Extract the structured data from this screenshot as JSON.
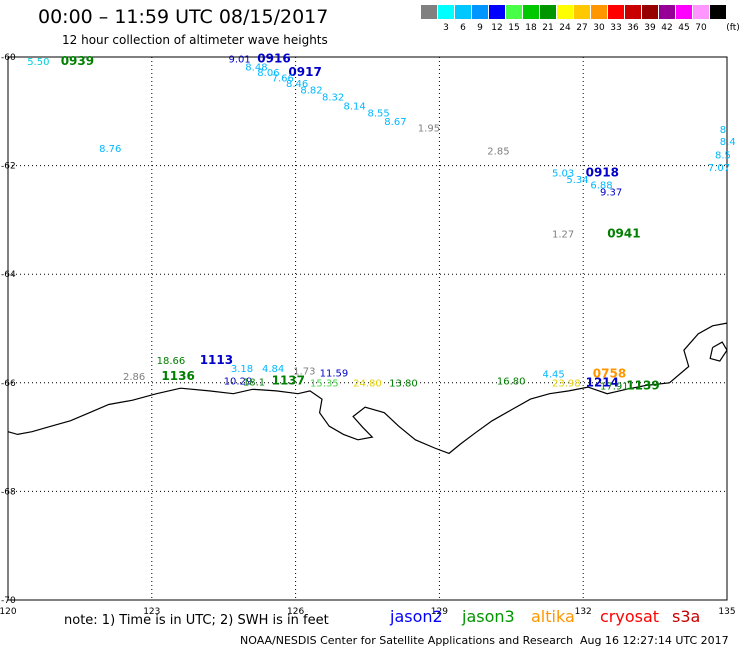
{
  "header": {
    "title": "00:00 – 11:59 UTC 08/15/2017",
    "subtitle": "12 hour collection of altimeter wave heights"
  },
  "color_scale": {
    "unit_label": "(ft)",
    "swatches": [
      {
        "color": "#808080",
        "label": ""
      },
      {
        "color": "#00ffff",
        "label": "3"
      },
      {
        "color": "#00c8ff",
        "label": "6"
      },
      {
        "color": "#0096ff",
        "label": "9"
      },
      {
        "color": "#0000ff",
        "label": "12"
      },
      {
        "color": "#46ff46",
        "label": "15"
      },
      {
        "color": "#00c800",
        "label": "18"
      },
      {
        "color": "#009600",
        "label": "21"
      },
      {
        "color": "#ffff00",
        "label": "24"
      },
      {
        "color": "#ffc800",
        "label": "27"
      },
      {
        "color": "#ff9600",
        "label": "30"
      },
      {
        "color": "#ff0000",
        "label": "33"
      },
      {
        "color": "#c80000",
        "label": "36"
      },
      {
        "color": "#960000",
        "label": "39"
      },
      {
        "color": "#960096",
        "label": "42"
      },
      {
        "color": "#ff00ff",
        "label": "45"
      },
      {
        "color": "#ff96ff",
        "label": "70"
      },
      {
        "color": "#000000",
        "label": ""
      }
    ]
  },
  "map": {
    "lon_range": [
      120,
      135
    ],
    "lat_range": [
      -70,
      -60
    ],
    "lon_ticks": [
      {
        "value": 120,
        "label": "120"
      },
      {
        "value": 123,
        "label": "123"
      },
      {
        "value": 126,
        "label": "126"
      },
      {
        "value": 129,
        "label": "129"
      },
      {
        "value": 132,
        "label": "132"
      },
      {
        "value": 135,
        "label": "135"
      }
    ],
    "lat_ticks": [
      {
        "value": -60,
        "label": "-60"
      },
      {
        "value": -62,
        "label": "-62"
      },
      {
        "value": -64,
        "label": "-64"
      },
      {
        "value": -66,
        "label": "-66"
      },
      {
        "value": -68,
        "label": "-68"
      },
      {
        "value": -70,
        "label": "-70"
      }
    ]
  },
  "observations": [
    {
      "lon": 120.4,
      "lat": -60.15,
      "text": "5.50",
      "color": "#00d0e0",
      "bold": false
    },
    {
      "lon": 121.1,
      "lat": -60.15,
      "text": "0939",
      "color": "#008000",
      "bold": true
    },
    {
      "lon": 121.9,
      "lat": -61.75,
      "text": "8.76",
      "color": "#00b8ff",
      "bold": false
    },
    {
      "lon": 124.6,
      "lat": -60.1,
      "text": "9.01",
      "color": "#0000c8",
      "bold": false
    },
    {
      "lon": 125.2,
      "lat": -60.1,
      "text": "0916",
      "color": "#0000c8",
      "bold": true
    },
    {
      "lon": 124.95,
      "lat": -60.25,
      "text": "8.48",
      "color": "#00b8ff",
      "bold": false
    },
    {
      "lon": 125.2,
      "lat": -60.35,
      "text": "8.06",
      "color": "#00b8ff",
      "bold": false
    },
    {
      "lon": 125.85,
      "lat": -60.35,
      "text": "0917",
      "color": "#0000c8",
      "bold": true
    },
    {
      "lon": 125.5,
      "lat": -60.45,
      "text": "7.66",
      "color": "#00b8ff",
      "bold": false
    },
    {
      "lon": 125.8,
      "lat": -60.55,
      "text": "8.46",
      "color": "#00b8ff",
      "bold": false
    },
    {
      "lon": 126.1,
      "lat": -60.67,
      "text": "8.82",
      "color": "#00b8ff",
      "bold": false
    },
    {
      "lon": 126.55,
      "lat": -60.8,
      "text": "8.32",
      "color": "#00b8ff",
      "bold": false
    },
    {
      "lon": 127.0,
      "lat": -60.97,
      "text": "8.14",
      "color": "#00b8ff",
      "bold": false
    },
    {
      "lon": 127.5,
      "lat": -61.1,
      "text": "8.55",
      "color": "#00b8ff",
      "bold": false
    },
    {
      "lon": 127.85,
      "lat": -61.25,
      "text": "8.67",
      "color": "#00b8ff",
      "bold": false
    },
    {
      "lon": 128.55,
      "lat": -61.37,
      "text": "1.95",
      "color": "#808080",
      "bold": false
    },
    {
      "lon": 130.0,
      "lat": -61.8,
      "text": "2.85",
      "color": "#808080",
      "bold": false
    },
    {
      "lon": 134.85,
      "lat": -61.4,
      "text": "8",
      "color": "#00b8ff",
      "bold": false
    },
    {
      "lon": 134.85,
      "lat": -61.62,
      "text": "8.4",
      "color": "#00b8ff",
      "bold": false
    },
    {
      "lon": 134.75,
      "lat": -61.87,
      "text": "8.5",
      "color": "#00b8ff",
      "bold": false
    },
    {
      "lon": 134.6,
      "lat": -62.1,
      "text": "7.07",
      "color": "#00b8ff",
      "bold": false
    },
    {
      "lon": 131.35,
      "lat": -62.2,
      "text": "5.03",
      "color": "#00b8ff",
      "bold": false
    },
    {
      "lon": 132.05,
      "lat": -62.2,
      "text": "0918",
      "color": "#0000c8",
      "bold": true
    },
    {
      "lon": 131.65,
      "lat": -62.32,
      "text": "5.34",
      "color": "#00b8ff",
      "bold": false
    },
    {
      "lon": 132.15,
      "lat": -62.42,
      "text": "6.88",
      "color": "#00b8ff",
      "bold": false
    },
    {
      "lon": 132.35,
      "lat": -62.55,
      "text": "9.37",
      "color": "#0000c8",
      "bold": false
    },
    {
      "lon": 131.35,
      "lat": -63.32,
      "text": "1.27",
      "color": "#808080",
      "bold": false
    },
    {
      "lon": 132.5,
      "lat": -63.32,
      "text": "0941",
      "color": "#008000",
      "bold": true
    },
    {
      "lon": 123.1,
      "lat": -65.65,
      "text": "18.66",
      "color": "#008000",
      "bold": false
    },
    {
      "lon": 124.0,
      "lat": -65.65,
      "text": "1113",
      "color": "#0000c8",
      "bold": true
    },
    {
      "lon": 122.4,
      "lat": -65.95,
      "text": "2.86",
      "color": "#808080",
      "bold": false
    },
    {
      "lon": 123.2,
      "lat": -65.95,
      "text": "1136",
      "color": "#008000",
      "bold": true
    },
    {
      "lon": 124.65,
      "lat": -65.8,
      "text": "3.18",
      "color": "#00b8ff",
      "bold": false
    },
    {
      "lon": 125.3,
      "lat": -65.8,
      "text": "4.84",
      "color": "#00b8ff",
      "bold": false
    },
    {
      "lon": 125.95,
      "lat": -65.85,
      "text": "1.73",
      "color": "#808080",
      "bold": false
    },
    {
      "lon": 126.5,
      "lat": -65.88,
      "text": "11.59",
      "color": "#0000c8",
      "bold": false
    },
    {
      "lon": 124.5,
      "lat": -66.03,
      "text": "10.29",
      "color": "#0000c8",
      "bold": false
    },
    {
      "lon": 124.9,
      "lat": -66.05,
      "text": "18.1",
      "color": "#008000",
      "bold": false
    },
    {
      "lon": 125.5,
      "lat": -66.03,
      "text": "1137",
      "color": "#008000",
      "bold": true
    },
    {
      "lon": 126.3,
      "lat": -66.07,
      "text": "15.35",
      "color": "#46d846",
      "bold": false
    },
    {
      "lon": 127.2,
      "lat": -66.07,
      "text": "24.80",
      "color": "#e6d200",
      "bold": false
    },
    {
      "lon": 127.95,
      "lat": -66.07,
      "text": "13.80",
      "color": "#008000",
      "bold": false
    },
    {
      "lon": 130.2,
      "lat": -66.03,
      "text": "16.80",
      "color": "#008000",
      "bold": false
    },
    {
      "lon": 131.15,
      "lat": -65.9,
      "text": "4.45",
      "color": "#00b8ff",
      "bold": false
    },
    {
      "lon": 132.2,
      "lat": -65.9,
      "text": "0758",
      "color": "#ff9600",
      "bold": true
    },
    {
      "lon": 131.35,
      "lat": -66.07,
      "text": "23.98",
      "color": "#e6d200",
      "bold": false
    },
    {
      "lon": 132.05,
      "lat": -66.07,
      "text": "1214",
      "color": "#0000c8",
      "bold": true
    },
    {
      "lon": 132.35,
      "lat": -66.12,
      "text": "17.91",
      "color": "#008000",
      "bold": false
    },
    {
      "lon": 132.9,
      "lat": -66.12,
      "text": "1139",
      "color": "#008000",
      "bold": true
    }
  ],
  "footer": {
    "note": "note:  1) Time is in UTC;  2) SWH is in feet",
    "missions": [
      {
        "name": "jason2",
        "color": "#0000ff"
      },
      {
        "name": "jason3",
        "color": "#009600"
      },
      {
        "name": "altika",
        "color": "#ff9600"
      },
      {
        "name": "cryosat",
        "color": "#ff0000"
      },
      {
        "name": "s3a",
        "color": "#c80000"
      }
    ],
    "credit": "NOAA/NESDIS Center for Satellite Applications and Research",
    "timestamp": "Aug 16 12:27:14 UTC 2017"
  }
}
